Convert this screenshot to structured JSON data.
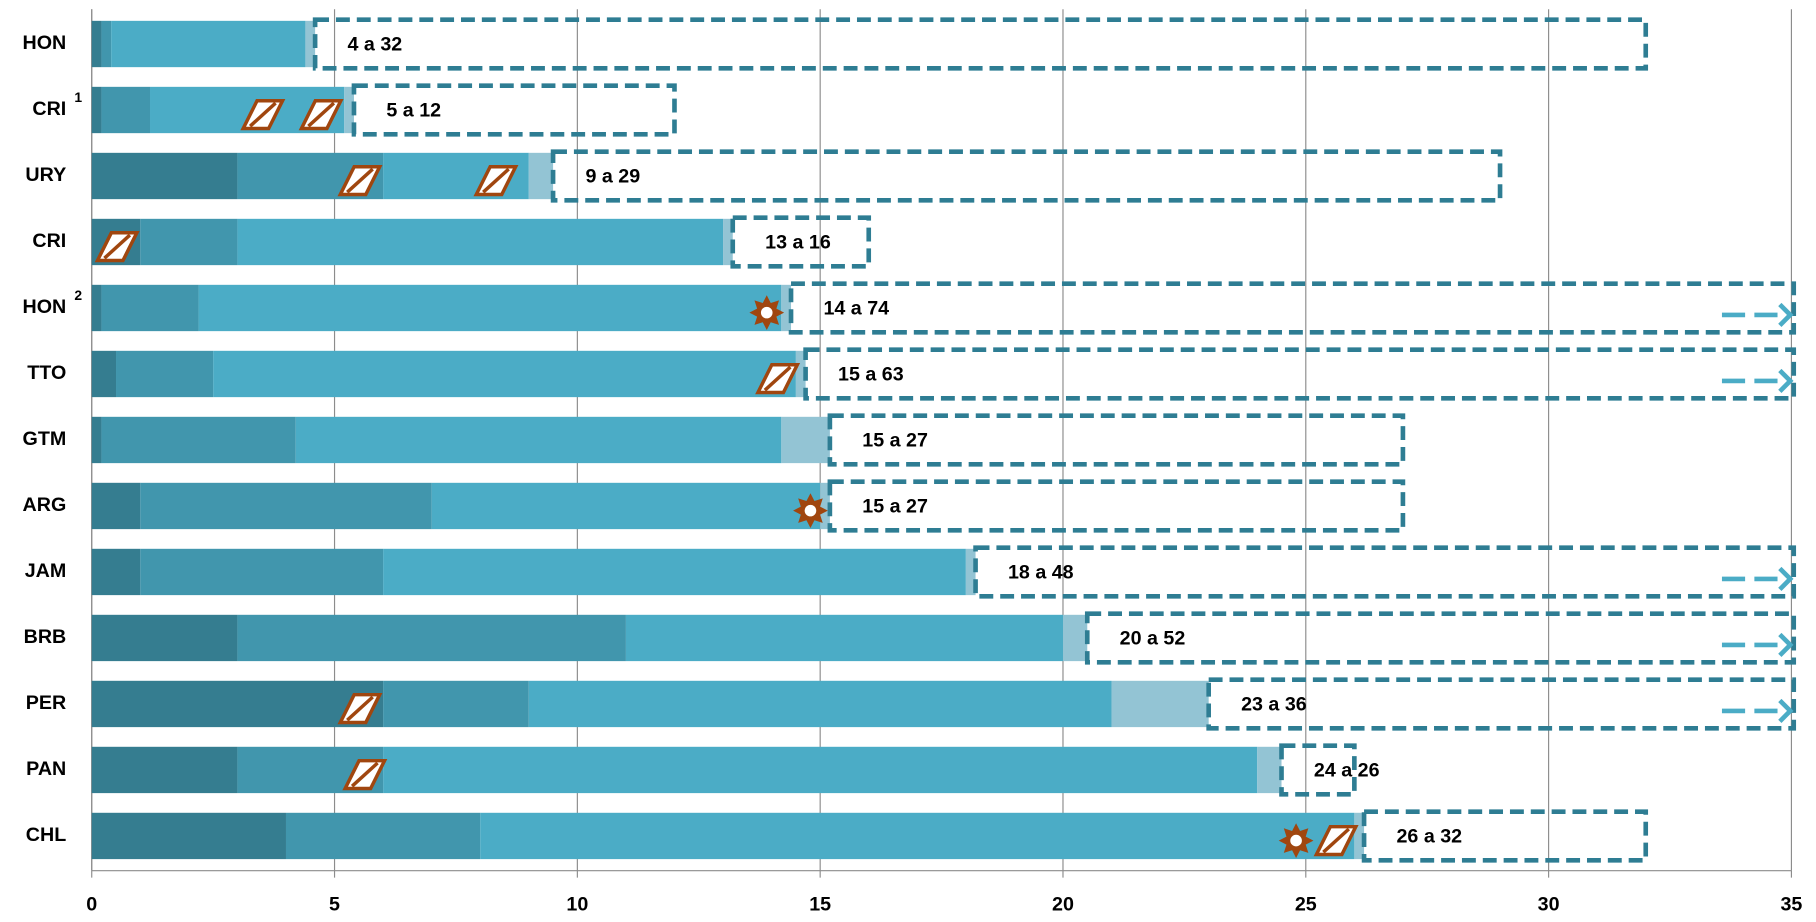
{
  "chart_data": {
    "type": "stacked-bar-range",
    "categories": [
      "HON",
      "CRI",
      "URY",
      "CRI",
      "HON",
      "TTO",
      "GTM",
      "ARG",
      "JAM",
      "BRB",
      "PER",
      "PAN",
      "CHL"
    ],
    "category_notes": [
      null,
      "1",
      null,
      null,
      "2",
      null,
      null,
      null,
      null,
      null,
      null,
      null,
      null
    ],
    "series": [
      {
        "color": "#357d90",
        "values": [
          0.2,
          0.2,
          3,
          1,
          0.2,
          0.5,
          0.2,
          1,
          1,
          3,
          6,
          3,
          4
        ]
      },
      {
        "color": "#4196ad",
        "values": [
          0.2,
          1,
          3,
          2,
          2,
          2,
          4,
          6,
          5,
          8,
          3,
          3,
          4
        ]
      },
      {
        "color": "#4bacc6",
        "values": [
          4,
          4,
          3,
          10,
          12,
          12,
          10,
          8,
          12,
          9,
          12,
          18,
          18
        ]
      },
      {
        "color": "#93c4d4",
        "values": [
          0.2,
          0.2,
          0.5,
          0.2,
          0.2,
          0.2,
          1,
          0.2,
          0.2,
          0.5,
          2,
          0.5,
          0.2
        ]
      }
    ],
    "range_labels": [
      "4 a 32",
      "5 a 12",
      "9 a 29",
      "13 a 16",
      "14 a 74",
      "15 a 63",
      "15 a 27",
      "15 a 27",
      "18 a 48",
      "20 a 52",
      "23 a 36",
      "24 a 26",
      "26 a 32"
    ],
    "range_high": [
      32,
      12,
      29,
      16,
      74,
      63,
      27,
      27,
      48,
      52,
      36,
      26,
      32
    ],
    "range_color": "#2e7d93",
    "icons": [
      {
        "row": 1,
        "x": 3.5,
        "kind": "slash"
      },
      {
        "row": 1,
        "x": 4.7,
        "kind": "slash"
      },
      {
        "row": 2,
        "x": 5.5,
        "kind": "slash"
      },
      {
        "row": 2,
        "x": 8.3,
        "kind": "slash"
      },
      {
        "row": 3,
        "x": 0.5,
        "kind": "slash"
      },
      {
        "row": 4,
        "x": 13.9,
        "kind": "gear"
      },
      {
        "row": 5,
        "x": 14.1,
        "kind": "slash"
      },
      {
        "row": 7,
        "x": 14.8,
        "kind": "gear"
      },
      {
        "row": 10,
        "x": 5.5,
        "kind": "slash"
      },
      {
        "row": 11,
        "x": 5.6,
        "kind": "slash"
      },
      {
        "row": 12,
        "x": 24.8,
        "kind": "gear"
      },
      {
        "row": 12,
        "x": 25.6,
        "kind": "slash"
      }
    ],
    "xlim": [
      0,
      35
    ],
    "xticks": [
      0,
      5,
      10,
      15,
      20,
      25,
      30,
      35
    ],
    "grid": true
  }
}
